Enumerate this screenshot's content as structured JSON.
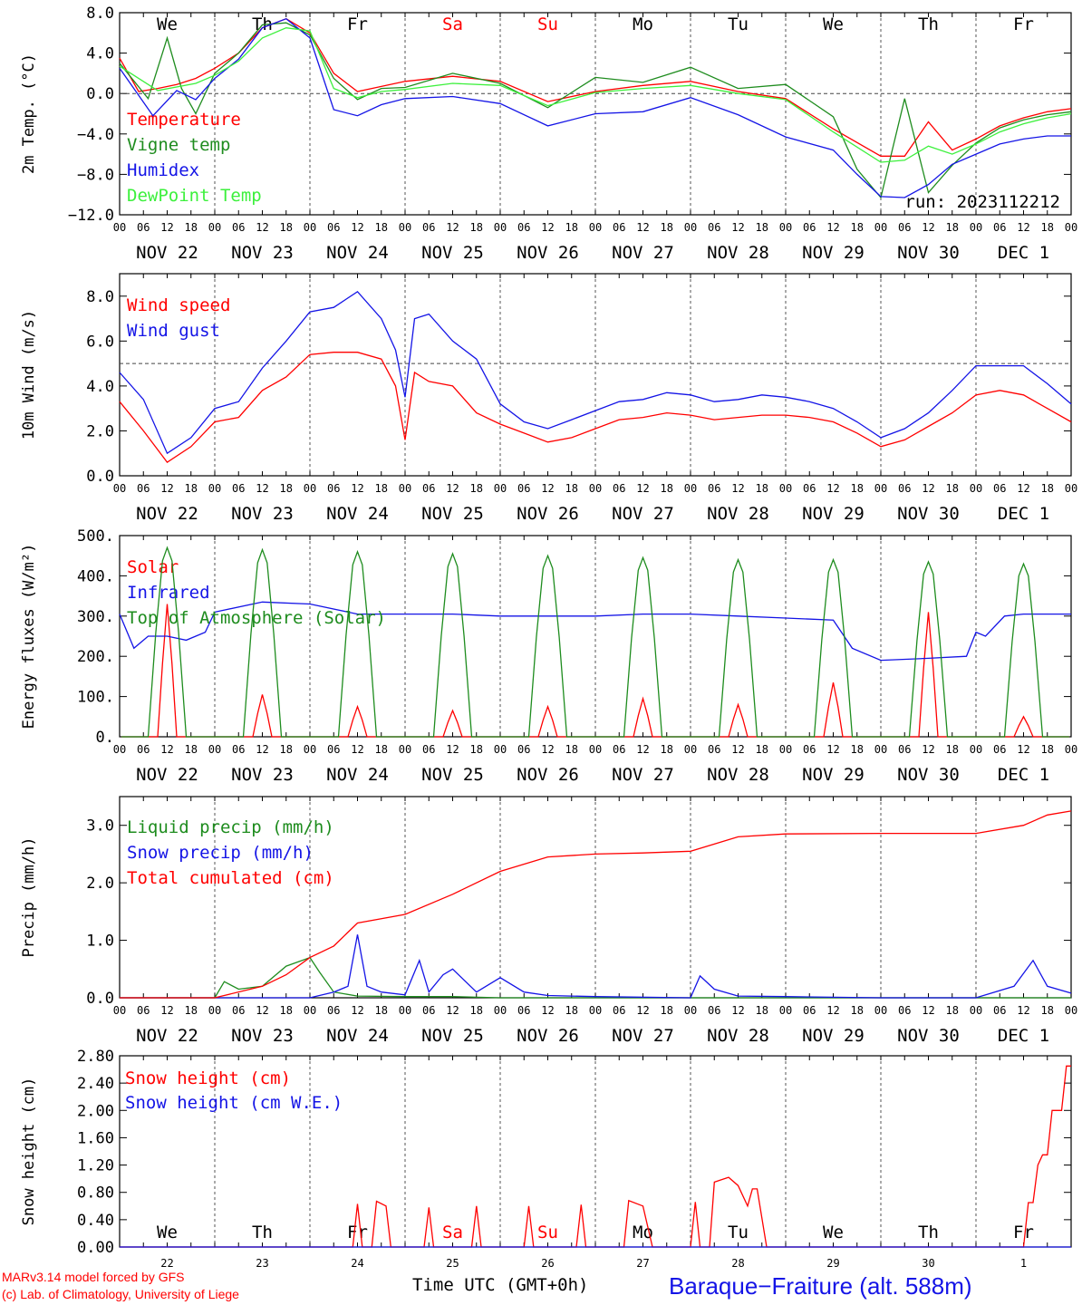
{
  "colors": {
    "red": "#ff0000",
    "green": "#1e8c1e",
    "blue": "#1414e6",
    "lightgreen": "#3cf03c"
  },
  "hour_labels": [
    "00",
    "06",
    "12",
    "18"
  ],
  "date_labels": [
    "NOV 22",
    "NOV 23",
    "NOV 24",
    "NOV 25",
    "NOV 26",
    "NOV 27",
    "NOV 28",
    "NOV 29",
    "NOV 30",
    "DEC  1"
  ],
  "weekdays": [
    {
      "label": "We",
      "color": "#000000"
    },
    {
      "label": "Th",
      "color": "#000000"
    },
    {
      "label": "Fr",
      "color": "#000000"
    },
    {
      "label": "Sa",
      "color": "#ff0000"
    },
    {
      "label": "Su",
      "color": "#ff0000"
    },
    {
      "label": "Mo",
      "color": "#000000"
    },
    {
      "label": "Tu",
      "color": "#000000"
    },
    {
      "label": "We",
      "color": "#000000"
    },
    {
      "label": "Th",
      "color": "#000000"
    },
    {
      "label": "Fr",
      "color": "#000000"
    }
  ],
  "day_numbers": [
    "22",
    "23",
    "24",
    "25",
    "26",
    "27",
    "28",
    "29",
    "30",
    "1"
  ],
  "run_label": "run: 2023112212",
  "footer": {
    "credit1": "MARv3.14 model forced by GFS",
    "credit2": "(c) Lab. of Climatology, University of Liege",
    "xlabel": "Time UTC (GMT+0h)",
    "station": "Baraque−Fraiture (alt. 588m)"
  },
  "chart_data": [
    {
      "type": "line",
      "ylabel": "2m Temp. (°C)",
      "ylim": [
        -12,
        8
      ],
      "yticks": [
        "8.0",
        "4.0",
        "0.0",
        "−4.0",
        "−8.0",
        "−12.0"
      ],
      "x_unit": "days since NOV 22 00 UTC",
      "series": [
        {
          "name": "Temperature",
          "color": "#ff0000",
          "x": [
            0,
            0.2,
            0.4,
            0.6,
            0.8,
            1,
            1.25,
            1.5,
            1.75,
            2,
            2.25,
            2.5,
            2.75,
            3,
            3.5,
            4,
            4.5,
            5,
            5.5,
            6,
            6.5,
            7,
            7.5,
            8,
            8.25,
            8.5,
            8.75,
            9,
            9.25,
            9.5,
            9.75,
            10
          ],
          "y": [
            3.5,
            0.2,
            0.5,
            0.9,
            1.5,
            2.5,
            4,
            6.5,
            7.4,
            6,
            2,
            0.2,
            0.7,
            1.2,
            1.7,
            1.2,
            -0.8,
            0.2,
            0.8,
            1.2,
            0.2,
            -0.5,
            -3.5,
            -6.2,
            -6.2,
            -2.8,
            -5.6,
            -4.5,
            -3.2,
            -2.4,
            -1.8,
            -1.5
          ]
        },
        {
          "name": "Vigne temp",
          "color": "#1e8c1e",
          "x": [
            0,
            0.3,
            0.5,
            0.65,
            0.8,
            1,
            1.25,
            1.5,
            1.75,
            2,
            2.25,
            2.5,
            2.75,
            3,
            3.5,
            4,
            4.5,
            5,
            5.5,
            6,
            6.5,
            7,
            7.5,
            7.75,
            8,
            8.25,
            8.5,
            8.75,
            9,
            9.25,
            9.5,
            9.75,
            10
          ],
          "y": [
            3,
            -0.5,
            5.5,
            0.5,
            -2,
            2,
            4,
            6.8,
            7,
            5.8,
            1.5,
            -0.6,
            0.5,
            0.6,
            2,
            1,
            -1.4,
            1.6,
            1.1,
            2.6,
            0.5,
            0.9,
            -2.3,
            -7.5,
            -10.3,
            -0.5,
            -9.8,
            -7.1,
            -4.9,
            -3.4,
            -2.6,
            -2.1,
            -1.8
          ]
        },
        {
          "name": "Humidex",
          "color": "#1414e6",
          "x": [
            0,
            0.35,
            0.6,
            0.8,
            1,
            1.25,
            1.5,
            1.75,
            2,
            2.25,
            2.5,
            2.75,
            3,
            3.5,
            4,
            4.5,
            5,
            5.5,
            6,
            6.5,
            7,
            7.5,
            7.75,
            8,
            8.25,
            8.5,
            8.75,
            9,
            9.25,
            9.5,
            9.75,
            10
          ],
          "y": [
            2.5,
            -2.2,
            0.3,
            -0.6,
            1.5,
            3.4,
            6.5,
            7.4,
            5.5,
            -1.6,
            -2.2,
            -1.1,
            -0.5,
            -0.3,
            -1,
            -3.2,
            -2,
            -1.8,
            -0.4,
            -2.1,
            -4.3,
            -5.6,
            -8,
            -10.2,
            -10.3,
            -9,
            -7,
            -6,
            -5,
            -4.5,
            -4.2,
            -4.2
          ]
        },
        {
          "name": "DewPoint Temp",
          "color": "#3cf03c",
          "x": [
            0,
            0.4,
            0.8,
            1,
            1.25,
            1.5,
            1.75,
            2,
            2.25,
            2.5,
            2.75,
            3,
            3.5,
            4,
            4.5,
            5,
            5.5,
            6,
            6.5,
            7,
            7.5,
            8,
            8.25,
            8.5,
            8.75,
            9,
            9.25,
            9.5,
            9.75,
            10
          ],
          "y": [
            2.7,
            0.3,
            1,
            1.8,
            3.2,
            5.5,
            6.5,
            6.2,
            0.5,
            -0.4,
            0.2,
            0.4,
            1,
            0.8,
            -1.2,
            0.1,
            0.5,
            0.8,
            0,
            -0.6,
            -3.8,
            -6.8,
            -6.6,
            -5.2,
            -6,
            -5,
            -3.8,
            -3,
            -2.4,
            -2
          ]
        }
      ]
    },
    {
      "type": "line",
      "ylabel": "10m Wind (m/s)",
      "ylim": [
        0,
        9
      ],
      "yticks": [
        "8.0",
        "6.0",
        "4.0",
        "2.0",
        "0.0"
      ],
      "ref_line": 5,
      "x_unit": "days since NOV 22 00 UTC",
      "series": [
        {
          "name": "Wind speed",
          "color": "#ff0000",
          "x": [
            0,
            0.25,
            0.5,
            0.75,
            1,
            1.25,
            1.5,
            1.75,
            2,
            2.25,
            2.5,
            2.75,
            2.9,
            3,
            3.1,
            3.25,
            3.5,
            3.75,
            4,
            4.25,
            4.5,
            4.75,
            5,
            5.25,
            5.5,
            5.75,
            6,
            6.25,
            6.5,
            6.75,
            7,
            7.25,
            7.5,
            7.75,
            8,
            8.25,
            8.5,
            8.75,
            9,
            9.25,
            9.5,
            9.75,
            10
          ],
          "y": [
            3.3,
            2,
            0.6,
            1.3,
            2.4,
            2.6,
            3.8,
            4.4,
            5.4,
            5.5,
            5.5,
            5.2,
            4,
            1.6,
            4.6,
            4.2,
            4,
            2.8,
            2.3,
            1.9,
            1.5,
            1.7,
            2.1,
            2.5,
            2.6,
            2.8,
            2.7,
            2.5,
            2.6,
            2.7,
            2.7,
            2.6,
            2.4,
            1.9,
            1.3,
            1.6,
            2.2,
            2.8,
            3.6,
            3.8,
            3.6,
            3,
            2.4
          ]
        },
        {
          "name": "Wind gust",
          "color": "#1414e6",
          "x": [
            0,
            0.25,
            0.5,
            0.75,
            1,
            1.25,
            1.5,
            1.75,
            2,
            2.25,
            2.5,
            2.75,
            2.9,
            3,
            3.1,
            3.25,
            3.5,
            3.75,
            4,
            4.25,
            4.5,
            4.75,
            5,
            5.25,
            5.5,
            5.75,
            6,
            6.25,
            6.5,
            6.75,
            7,
            7.25,
            7.5,
            7.75,
            8,
            8.25,
            8.5,
            8.75,
            9,
            9.25,
            9.5,
            9.75,
            10
          ],
          "y": [
            4.6,
            3.4,
            1,
            1.7,
            3,
            3.3,
            4.8,
            6,
            7.3,
            7.5,
            8.2,
            7,
            5.6,
            3.5,
            7,
            7.2,
            6,
            5.2,
            3.2,
            2.4,
            2.1,
            2.5,
            2.9,
            3.3,
            3.4,
            3.7,
            3.6,
            3.3,
            3.4,
            3.6,
            3.5,
            3.3,
            3,
            2.4,
            1.7,
            2.1,
            2.8,
            3.8,
            4.9,
            4.9,
            4.9,
            4.1,
            3.2
          ]
        }
      ]
    },
    {
      "type": "line",
      "ylabel": "Energy fluxes (W/m²)",
      "ylim": [
        0,
        500
      ],
      "yticks": [
        "500.",
        "400.",
        "300.",
        "200.",
        "100.",
        "0."
      ],
      "x_unit": "days since NOV 22 00 UTC",
      "series": [
        {
          "name": "Solar",
          "color": "#ff0000",
          "peaks": [
            330,
            105,
            75,
            65,
            75,
            95,
            80,
            135,
            310,
            50
          ]
        },
        {
          "name": "Infrared",
          "color": "#1414e6",
          "x": [
            0,
            0.15,
            0.3,
            0.5,
            0.7,
            0.9,
            1,
            1.5,
            2,
            2.5,
            3,
            3.5,
            4,
            4.5,
            5,
            5.5,
            6,
            6.5,
            7,
            7.5,
            7.7,
            8,
            8.5,
            8.9,
            9,
            9.1,
            9.3,
            9.5,
            10
          ],
          "y": [
            305,
            220,
            250,
            250,
            240,
            260,
            310,
            335,
            330,
            305,
            305,
            305,
            300,
            300,
            300,
            305,
            305,
            300,
            295,
            290,
            220,
            190,
            195,
            200,
            260,
            250,
            300,
            305,
            305
          ]
        },
        {
          "name": "Top of Atmosphere (Solar)",
          "color": "#1e8c1e",
          "peaks": [
            470,
            465,
            460,
            455,
            450,
            445,
            440,
            440,
            435,
            430
          ]
        }
      ]
    },
    {
      "type": "line",
      "ylabel": "Precip (mm/h)",
      "ylim": [
        0,
        3.5
      ],
      "yticks": [
        "3.0",
        "2.0",
        "1.0",
        "0.0"
      ],
      "x_unit": "days since NOV 22 00 UTC",
      "series": [
        {
          "name": "Liquid precip (mm/h)",
          "color": "#1e8c1e",
          "x": [
            0,
            1,
            1.1,
            1.25,
            1.5,
            1.75,
            2,
            2.1,
            2.25,
            2.5,
            3,
            3.5,
            4,
            5,
            10
          ],
          "y": [
            0,
            0,
            0.28,
            0.15,
            0.2,
            0.55,
            0.7,
            0.45,
            0.1,
            0.03,
            0.02,
            0.02,
            0,
            0,
            0
          ]
        },
        {
          "name": "Snow precip (mm/h)",
          "color": "#1414e6",
          "x": [
            0,
            2,
            2.25,
            2.4,
            2.5,
            2.6,
            2.75,
            3,
            3.15,
            3.25,
            3.4,
            3.5,
            3.75,
            4,
            4.25,
            4.5,
            5,
            6,
            6.1,
            6.25,
            6.5,
            7,
            8,
            9,
            9.4,
            9.6,
            9.75,
            10
          ],
          "y": [
            0,
            0,
            0.1,
            0.2,
            1.1,
            0.2,
            0.1,
            0.05,
            0.65,
            0.1,
            0.4,
            0.5,
            0.1,
            0.35,
            0.1,
            0.04,
            0.02,
            0,
            0.38,
            0.15,
            0.03,
            0.02,
            0,
            0,
            0.2,
            0.65,
            0.2,
            0.08
          ]
        },
        {
          "name": "Total cumulated (cm)",
          "color": "#ff0000",
          "x": [
            0,
            1,
            1.5,
            1.75,
            2,
            2.25,
            2.5,
            3,
            3.5,
            4,
            4.5,
            5,
            5.5,
            6,
            6.5,
            7,
            8,
            9,
            9.5,
            9.75,
            10
          ],
          "y": [
            0,
            0,
            0.2,
            0.4,
            0.7,
            0.9,
            1.3,
            1.45,
            1.8,
            2.2,
            2.45,
            2.5,
            2.52,
            2.55,
            2.8,
            2.85,
            2.86,
            2.86,
            3.0,
            3.18,
            3.25
          ]
        }
      ]
    },
    {
      "type": "line",
      "ylabel": "Snow height (cm)",
      "ylim": [
        0,
        2.8
      ],
      "yticks": [
        "2.80",
        "2.40",
        "2.00",
        "1.60",
        "1.20",
        "0.80",
        "0.40",
        "0.00"
      ],
      "x_unit": "days since NOV 22 00 UTC",
      "series": [
        {
          "name": "Snow height (cm)",
          "color": "#ff0000",
          "x": [
            0,
            2.45,
            2.5,
            2.55,
            2.65,
            2.7,
            2.8,
            2.85,
            3.2,
            3.25,
            3.3,
            3.7,
            3.75,
            3.8,
            4.25,
            4.3,
            4.35,
            4.8,
            4.85,
            4.9,
            5.3,
            5.35,
            5.5,
            5.6,
            5.65,
            6,
            6.05,
            6.1,
            6.2,
            6.25,
            6.4,
            6.5,
            6.6,
            6.65,
            6.7,
            6.8,
            9.5,
            9.55,
            9.6,
            9.65,
            9.7,
            9.75,
            9.8,
            9.9,
            9.95,
            10
          ],
          "y": [
            0,
            0,
            0.63,
            0,
            0,
            0.67,
            0.6,
            0,
            0,
            0.58,
            0,
            0,
            0.6,
            0,
            0,
            0.6,
            0,
            0,
            0.62,
            0,
            0,
            0.68,
            0.6,
            0,
            0,
            0,
            0.66,
            0,
            0,
            0.95,
            1.02,
            0.9,
            0.6,
            0.85,
            0.85,
            0,
            0,
            0.65,
            0.65,
            1.2,
            1.35,
            1.35,
            2,
            2,
            2.65,
            2.65
          ]
        },
        {
          "name": "Snow height (cm W.E.)",
          "color": "#1414e6",
          "x": [
            0,
            10
          ],
          "y": [
            0,
            0
          ]
        }
      ]
    }
  ]
}
